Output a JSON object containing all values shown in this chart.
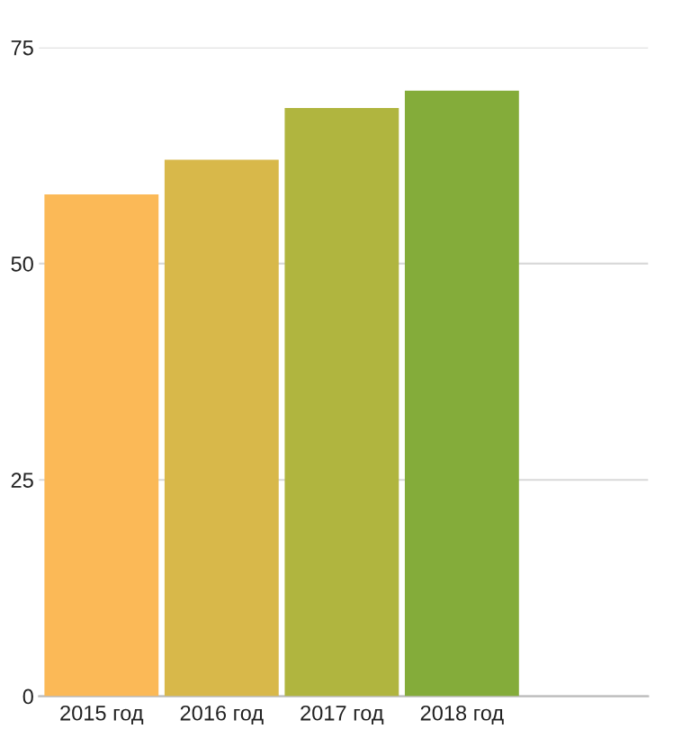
{
  "chart_data": {
    "type": "bar",
    "categories": [
      "2015 год",
      "2016 год",
      "2017 год",
      "2018 год"
    ],
    "values": [
      58,
      62,
      68,
      70
    ],
    "colors": [
      "#fbb957",
      "#d8b84a",
      "#b0b53f",
      "#84ac3a"
    ],
    "ylim": [
      0,
      75
    ],
    "yticks": [
      0,
      25,
      50,
      75
    ],
    "grid": "y"
  }
}
